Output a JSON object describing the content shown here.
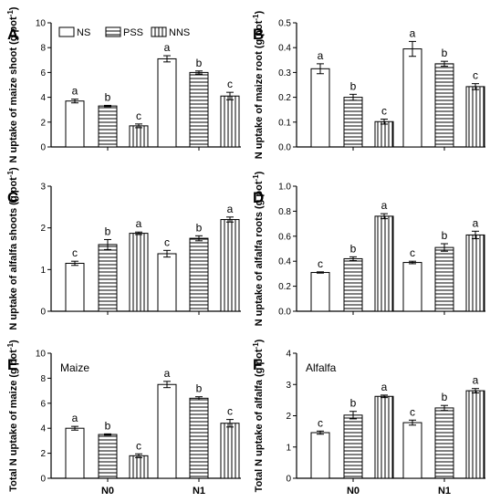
{
  "figure": {
    "categories": [
      "N0",
      "N1"
    ],
    "legend": [
      "NS",
      "PSS",
      "NNS"
    ],
    "colors": {
      "line": "#000000",
      "background": "#ffffff"
    }
  },
  "chart_data": [
    {
      "panel": "A",
      "type": "bar",
      "ylabel": "N uptake of maize shoot (g pot-1)",
      "ylim": [
        0,
        10
      ],
      "yticks": [
        0,
        2,
        4,
        6,
        8,
        10
      ],
      "ytick_labels": [
        "0",
        "2",
        "4",
        "6",
        "8",
        "10"
      ],
      "categories": [
        "N0",
        "N1"
      ],
      "show_xticklabels": false,
      "show_legend": true,
      "legend_position": "top-left",
      "series": [
        {
          "name": "NS",
          "values": [
            3.7,
            7.1
          ],
          "errors": [
            0.15,
            0.25
          ],
          "letters": [
            "a",
            "a"
          ]
        },
        {
          "name": "PSS",
          "values": [
            3.3,
            6.0
          ],
          "errors": [
            0.05,
            0.12
          ],
          "letters": [
            "b",
            "b"
          ]
        },
        {
          "name": "NNS",
          "values": [
            1.7,
            4.1
          ],
          "errors": [
            0.15,
            0.3
          ],
          "letters": [
            "c",
            "c"
          ]
        }
      ]
    },
    {
      "panel": "B",
      "type": "bar",
      "ylabel": "N uptake of maize root (g pot-1)",
      "ylim": [
        0,
        0.5
      ],
      "yticks": [
        0,
        0.1,
        0.2,
        0.3,
        0.4,
        0.5
      ],
      "ytick_labels": [
        "0.0",
        "0.1",
        "0.2",
        "0.3",
        "0.4",
        "0.5"
      ],
      "categories": [
        "N0",
        "N1"
      ],
      "show_xticklabels": false,
      "show_legend": false,
      "series": [
        {
          "name": "NS",
          "values": [
            0.315,
            0.395
          ],
          "errors": [
            0.02,
            0.03
          ],
          "letters": [
            "a",
            "a"
          ]
        },
        {
          "name": "PSS",
          "values": [
            0.2,
            0.335
          ],
          "errors": [
            0.012,
            0.01
          ],
          "letters": [
            "b",
            "b"
          ]
        },
        {
          "name": "NNS",
          "values": [
            0.102,
            0.243
          ],
          "errors": [
            0.01,
            0.012
          ],
          "letters": [
            "c",
            "c"
          ]
        }
      ]
    },
    {
      "panel": "C",
      "type": "bar",
      "ylabel": "N uptake of alfalfa shoots (g pot-1)",
      "ylim": [
        0,
        3
      ],
      "yticks": [
        0,
        1,
        2,
        3
      ],
      "ytick_labels": [
        "0",
        "1",
        "2",
        "3"
      ],
      "categories": [
        "N0",
        "N1"
      ],
      "show_xticklabels": false,
      "show_legend": false,
      "series": [
        {
          "name": "NS",
          "values": [
            1.15,
            1.38
          ],
          "errors": [
            0.05,
            0.08
          ],
          "letters": [
            "c",
            "c"
          ]
        },
        {
          "name": "PSS",
          "values": [
            1.6,
            1.75
          ],
          "errors": [
            0.12,
            0.06
          ],
          "letters": [
            "b",
            "b"
          ]
        },
        {
          "name": "NNS",
          "values": [
            1.87,
            2.2
          ],
          "errors": [
            0.03,
            0.06
          ],
          "letters": [
            "a",
            "a"
          ]
        }
      ]
    },
    {
      "panel": "D",
      "type": "bar",
      "ylabel": "N uptake of alfalfa roots (g pot-1)",
      "ylim": [
        0,
        1.0
      ],
      "yticks": [
        0,
        0.2,
        0.4,
        0.6,
        0.8,
        1.0
      ],
      "ytick_labels": [
        "0.0",
        "0.2",
        "0.4",
        "0.6",
        "0.8",
        "1.0"
      ],
      "categories": [
        "N0",
        "N1"
      ],
      "show_xticklabels": false,
      "show_legend": false,
      "series": [
        {
          "name": "NS",
          "values": [
            0.31,
            0.39
          ],
          "errors": [
            0.005,
            0.01
          ],
          "letters": [
            "c",
            "c"
          ]
        },
        {
          "name": "PSS",
          "values": [
            0.42,
            0.51
          ],
          "errors": [
            0.015,
            0.03
          ],
          "letters": [
            "b",
            "b"
          ]
        },
        {
          "name": "NNS",
          "values": [
            0.76,
            0.61
          ],
          "errors": [
            0.02,
            0.03
          ],
          "letters": [
            "a",
            "a"
          ]
        }
      ]
    },
    {
      "panel": "E",
      "type": "bar",
      "title": "Maize",
      "ylabel": "Total N uptake of maize (g pot-1)",
      "ylim": [
        0,
        10
      ],
      "yticks": [
        0,
        2,
        4,
        6,
        8,
        10
      ],
      "ytick_labels": [
        "0",
        "2",
        "4",
        "6",
        "8",
        "10"
      ],
      "categories": [
        "N0",
        "N1"
      ],
      "show_xticklabels": true,
      "show_legend": false,
      "series": [
        {
          "name": "NS",
          "values": [
            4.0,
            7.5
          ],
          "errors": [
            0.15,
            0.25
          ],
          "letters": [
            "a",
            "a"
          ]
        },
        {
          "name": "PSS",
          "values": [
            3.5,
            6.4
          ],
          "errors": [
            0.05,
            0.12
          ],
          "letters": [
            "b",
            "b"
          ]
        },
        {
          "name": "NNS",
          "values": [
            1.8,
            4.4
          ],
          "errors": [
            0.15,
            0.3
          ],
          "letters": [
            "c",
            "c"
          ]
        }
      ]
    },
    {
      "panel": "F",
      "type": "bar",
      "title": "Alfalfa",
      "ylabel": "Total N uptake of alfalfa (g pot-1)",
      "ylim": [
        0,
        4
      ],
      "yticks": [
        0,
        1,
        2,
        3,
        4
      ],
      "ytick_labels": [
        "0",
        "1",
        "2",
        "3",
        "4"
      ],
      "categories": [
        "N0",
        "N1"
      ],
      "show_xticklabels": true,
      "show_legend": false,
      "series": [
        {
          "name": "NS",
          "values": [
            1.46,
            1.78
          ],
          "errors": [
            0.05,
            0.08
          ],
          "letters": [
            "c",
            "c"
          ]
        },
        {
          "name": "PSS",
          "values": [
            2.02,
            2.25
          ],
          "errors": [
            0.12,
            0.08
          ],
          "letters": [
            "b",
            "b"
          ]
        },
        {
          "name": "NNS",
          "values": [
            2.62,
            2.8
          ],
          "errors": [
            0.04,
            0.07
          ],
          "letters": [
            "a",
            "a"
          ]
        }
      ]
    }
  ]
}
